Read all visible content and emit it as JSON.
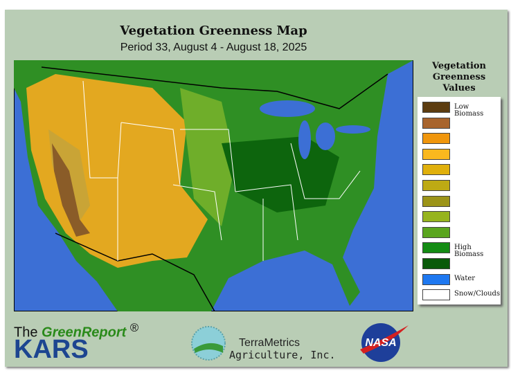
{
  "header": {
    "title": "Vegetation Greenness Map",
    "subtitle": "Period 33, August 4 - August 18, 2025"
  },
  "legend": {
    "title": "Vegetation Greenness Values",
    "items": [
      {
        "color": "#5c3c10",
        "label": "Low Biomass"
      },
      {
        "color": "#a8642c"
      },
      {
        "color": "#f0960c"
      },
      {
        "color": "#fab81e"
      },
      {
        "color": "#e0b00c"
      },
      {
        "color": "#beaa14"
      },
      {
        "color": "#9c9418"
      },
      {
        "color": "#96b41e"
      },
      {
        "color": "#5aa51e"
      },
      {
        "color": "#148c14",
        "label": "High Biomass"
      },
      {
        "color": "#0a5a0a"
      },
      {
        "color": "#1e78f0",
        "label": "Water"
      },
      {
        "color": "#ffffff",
        "label": "Snow/Clouds"
      }
    ]
  },
  "footer": {
    "greenreport_prefix": "The",
    "greenreport": "GreenReport",
    "registered": "®",
    "kars": "KARS",
    "terrametrics": "TerraMetrics",
    "agriculture": "Agriculture, Inc.",
    "nasa": "NASA"
  }
}
